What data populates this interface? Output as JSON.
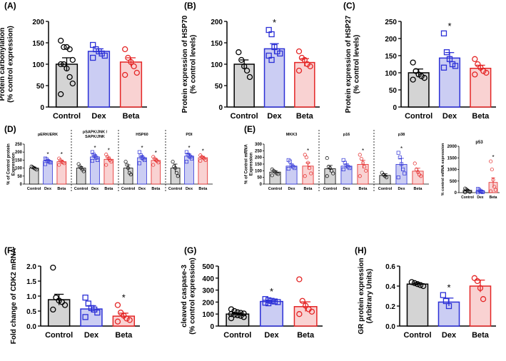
{
  "figure": {
    "colors": {
      "control_fill": "#d4d4d4",
      "control_edge": "#000000",
      "dex_fill": "#cbcdf3",
      "dex_edge": "#2b2fd6",
      "beta_fill": "#f9d2d2",
      "beta_edge": "#e42525"
    },
    "groups": [
      "Control",
      "Dex",
      "Beta"
    ]
  },
  "chart_data": [
    {
      "panel": "(A)",
      "type": "bar",
      "ylabel": "Protein carbonylation\n(% control expression)",
      "ylim": [
        0,
        200
      ],
      "yticks": [
        0,
        50,
        100,
        150,
        200
      ],
      "categories": [
        "Control",
        "Dex",
        "Beta"
      ],
      "values": [
        100,
        130,
        105
      ],
      "errors": [
        15,
        6,
        10
      ],
      "sig": [
        "",
        "",
        ""
      ],
      "points": [
        [
          155,
          140,
          140,
          135,
          110,
          100,
          100,
          90,
          70,
          55,
          30
        ],
        [
          145,
          135,
          130,
          125,
          120,
          115
        ],
        [
          135,
          115,
          105,
          95,
          80,
          75
        ]
      ]
    },
    {
      "panel": "(B)",
      "type": "bar",
      "ylabel": "Protein expression of HSP70\n(% control levels)",
      "ylim": [
        0,
        200
      ],
      "yticks": [
        0,
        50,
        100,
        150,
        200
      ],
      "categories": [
        "Control",
        "Dex",
        "Beta"
      ],
      "values": [
        100,
        136,
        104
      ],
      "errors": [
        10,
        12,
        9
      ],
      "sig": [
        "",
        "*",
        ""
      ],
      "points": [
        [
          128,
          110,
          95,
          85,
          70
        ],
        [
          180,
          170,
          140,
          130,
          125,
          120,
          110
        ],
        [
          130,
          115,
          110,
          100,
          95,
          85
        ]
      ]
    },
    {
      "panel": "(C)",
      "type": "bar",
      "ylabel": "Protein expression of HSP27\n(% control levels)",
      "ylim": [
        0,
        250
      ],
      "yticks": [
        0,
        50,
        100,
        150,
        200,
        250
      ],
      "categories": [
        "Control",
        "Dex",
        "Beta"
      ],
      "values": [
        100,
        143,
        113
      ],
      "errors": [
        11,
        16,
        9
      ],
      "sig": [
        "",
        "*",
        ""
      ],
      "points": [
        [
          130,
          105,
          95,
          90,
          85,
          80
        ],
        [
          215,
          160,
          140,
          125,
          120,
          115
        ],
        [
          140,
          125,
          115,
          105,
          100,
          95
        ]
      ]
    },
    {
      "panel": "(D)",
      "type": "bar",
      "ylabel": "% of Control protein\nExpression",
      "ylim": [
        0,
        250
      ],
      "yticks": [
        0,
        50,
        100,
        150,
        200,
        250
      ],
      "groups": [
        {
          "title": "pERK/ERK",
          "values": [
            100,
            145,
            140
          ],
          "errors": [
            7,
            10,
            10
          ],
          "sig": [
            "",
            "*",
            "*"
          ],
          "points": [
            [
              110,
              105,
              100,
              95,
              90
            ],
            [
              160,
              155,
              145,
              140,
              135,
              125
            ],
            [
              160,
              150,
              140,
              135,
              130,
              120
            ]
          ]
        },
        {
          "title": "pSAPK/JNK /\nSAPK/JNK",
          "values": [
            100,
            170,
            155
          ],
          "errors": [
            10,
            12,
            14
          ],
          "sig": [
            "",
            "*",
            "*"
          ],
          "points": [
            [
              125,
              110,
              100,
              90,
              80
            ],
            [
              200,
              185,
              175,
              165,
              150,
              145
            ],
            [
              185,
              170,
              160,
              150,
              140,
              120
            ]
          ]
        },
        {
          "title": "HSP60",
          "values": [
            100,
            165,
            148
          ],
          "errors": [
            20,
            14,
            12
          ],
          "sig": [
            "",
            "*",
            "*"
          ],
          "points": [
            [
              140,
              120,
              100,
              70,
              60
            ],
            [
              200,
              180,
              165,
              160,
              150,
              130
            ],
            [
              170,
              160,
              150,
              145,
              135,
              120
            ]
          ]
        },
        {
          "title": "PDI",
          "values": [
            100,
            175,
            165
          ],
          "errors": [
            25,
            14,
            9
          ],
          "sig": [
            "",
            "*",
            "*"
          ],
          "points": [
            [
              140,
              110,
              100,
              70,
              50
            ],
            [
              200,
              185,
              175,
              170,
              160,
              140
            ],
            [
              180,
              170,
              165,
              160,
              150,
              145
            ]
          ]
        }
      ],
      "categories": [
        "Control",
        "Dex",
        "Beta"
      ]
    },
    {
      "panel": "(E)",
      "type": "bar",
      "ylabel": "% of Control mRNA\nExpression",
      "ylim": [
        0,
        300
      ],
      "yticks": [
        0,
        50,
        100,
        150,
        200,
        250,
        300
      ],
      "groups": [
        {
          "title": "MKK3",
          "values": [
            90,
            135,
            135
          ],
          "errors": [
            10,
            15,
            25
          ],
          "sig": [
            "",
            "",
            "*"
          ],
          "points": [
            [
              110,
              100,
              90,
              80,
              75,
              65
            ],
            [
              180,
              170,
              140,
              130,
              120,
              115
            ],
            [
              220,
              200,
              160,
              120,
              80,
              60
            ]
          ]
        },
        {
          "title": "p16",
          "values": [
            115,
            135,
            148
          ],
          "errors": [
            25,
            16,
            30
          ],
          "sig": [
            "",
            "",
            "*"
          ],
          "points": [
            [
              195,
              130,
              120,
              100,
              80,
              60
            ],
            [
              180,
              160,
              140,
              130,
              120,
              110
            ],
            [
              220,
              190,
              160,
              130,
              100,
              60
            ]
          ]
        },
        {
          "title": "p38",
          "values": [
            65,
            148,
            97
          ],
          "errors": [
            12,
            45,
            22
          ],
          "sig": [
            "",
            "*",
            ""
          ],
          "points": [
            [
              85,
              70,
              60,
              50
            ],
            [
              235,
              200,
              150,
              110,
              80,
              50
            ],
            [
              155,
              110,
              90,
              70,
              60
            ]
          ]
        }
      ],
      "categories": [
        "Control",
        "Dex",
        "Beta"
      ]
    },
    {
      "panel": "",
      "type": "bar",
      "title": "p53",
      "ylabel": "% control mRNA expression",
      "ylim": [
        0,
        2000
      ],
      "yticks": [
        0,
        500,
        1000,
        1500,
        2000
      ],
      "categories": [
        "Control",
        "Dex",
        "Beta"
      ],
      "values": [
        100,
        70,
        440
      ],
      "errors": [
        30,
        20,
        200
      ],
      "sig": [
        "",
        "",
        "*"
      ],
      "points": [
        [
          180,
          140,
          100,
          60,
          30,
          10
        ],
        [
          160,
          120,
          80,
          40,
          20,
          10
        ],
        [
          1350,
          1000,
          550,
          250,
          120,
          60
        ]
      ]
    },
    {
      "panel": "(F)",
      "type": "bar",
      "ylabel": "Fold change of CDK2 mRNA",
      "ylim": [
        0,
        2.0
      ],
      "yticks": [
        0,
        0.5,
        1.0,
        1.5,
        2.0
      ],
      "ytick_labels": [
        "0.0",
        "0.5",
        "1.0",
        "1.5",
        "2.0"
      ],
      "categories": [
        "Control",
        "Dex",
        "Beta"
      ],
      "values": [
        0.88,
        0.57,
        0.33
      ],
      "errors": [
        0.18,
        0.11,
        0.1
      ],
      "sig": [
        "",
        "",
        "*"
      ],
      "points": [
        [
          1.95,
          0.95,
          0.85,
          0.8,
          0.7,
          0.55
        ],
        [
          0.95,
          0.75,
          0.6,
          0.55,
          0.45,
          0.3
        ],
        [
          0.7,
          0.45,
          0.35,
          0.25,
          0.2,
          0.15
        ]
      ]
    },
    {
      "panel": "(G)",
      "type": "bar",
      "ylabel": "cleaved caspase-3\n(% control expression)",
      "ylim": [
        0,
        500
      ],
      "yticks": [
        0,
        100,
        200,
        300,
        400,
        500
      ],
      "categories": [
        "Control",
        "Dex",
        "Beta"
      ],
      "values": [
        100,
        205,
        162
      ],
      "errors": [
        9,
        10,
        40
      ],
      "sig": [
        "",
        "*",
        ""
      ],
      "points": [
        [
          140,
          125,
          115,
          110,
          105,
          100,
          95,
          90,
          85,
          75,
          65
        ],
        [
          225,
          215,
          210,
          205,
          200,
          195,
          190
        ],
        [
          390,
          210,
          170,
          140,
          120,
          100
        ]
      ]
    },
    {
      "panel": "(H)",
      "type": "bar",
      "ylabel": "GR protein expression\n(Arbitrary Units)",
      "ylim": [
        0,
        0.6
      ],
      "yticks": [
        0,
        0.2,
        0.4,
        0.6
      ],
      "ytick_labels": [
        "0.0",
        "0.2",
        "0.4",
        "0.6"
      ],
      "categories": [
        "Control",
        "Dex",
        "Beta"
      ],
      "values": [
        0.42,
        0.24,
        0.4
      ],
      "errors": [
        0.012,
        0.04,
        0.06
      ],
      "sig": [
        "",
        "*",
        ""
      ],
      "points": [
        [
          0.44,
          0.43,
          0.42,
          0.41,
          0.4
        ],
        [
          0.31,
          0.25,
          0.2
        ],
        [
          0.48,
          0.45,
          0.38,
          0.27
        ]
      ]
    }
  ]
}
